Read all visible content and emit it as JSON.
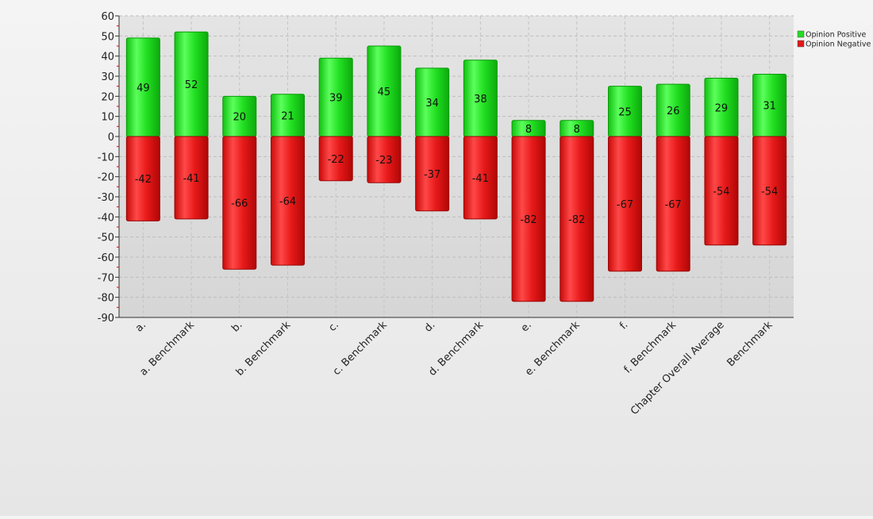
{
  "chart_data": {
    "type": "bar",
    "stacked": true,
    "title": "",
    "xlabel": "",
    "ylabel": "",
    "ylim": [
      -90,
      60
    ],
    "ytick_step": 10,
    "grid": true,
    "legend_position": "top-right",
    "categories": [
      "a.",
      "a. Benchmark",
      "b.",
      "b. Benchmark",
      "c.",
      "c. Benchmark",
      "d.",
      "d. Benchmark",
      "e.",
      "e. Benchmark",
      "f.",
      "f. Benchmark",
      "Chapter Overall Average",
      "Benchmark"
    ],
    "series": [
      {
        "name": "Opinion Positive",
        "color": "#22dd22",
        "values": [
          49,
          52,
          20,
          21,
          39,
          45,
          34,
          38,
          8,
          8,
          25,
          26,
          29,
          31
        ]
      },
      {
        "name": "Opinion Negative",
        "color": "#e01818",
        "values": [
          -42,
          -41,
          -66,
          -64,
          -22,
          -23,
          -37,
          -41,
          -82,
          -82,
          -67,
          -67,
          -54,
          -54
        ]
      }
    ]
  }
}
